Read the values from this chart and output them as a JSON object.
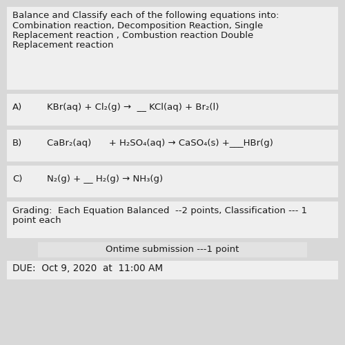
{
  "bg_color": "#d8d8d8",
  "card_color": "#efefef",
  "ontime_card_color": "#e2e2e2",
  "text_color": "#1a1a1a",
  "title_text_lines": [
    "Balance and Classify each of the following equations into:",
    "Combination reaction, Decomposition Reaction, Single",
    "Replacement reaction , Combustion reaction Double",
    "Replacement reaction"
  ],
  "grading_line1": "Grading:  Each Equation Balanced  --2 points, Classification --- 1",
  "grading_line2": "point each",
  "ontime_text": "Ontime submission ---1 point",
  "due_text": "DUE:  Oct 9, 2020  at  11:00 AM",
  "font_size": 9.5,
  "font_size_eq": 9.5
}
